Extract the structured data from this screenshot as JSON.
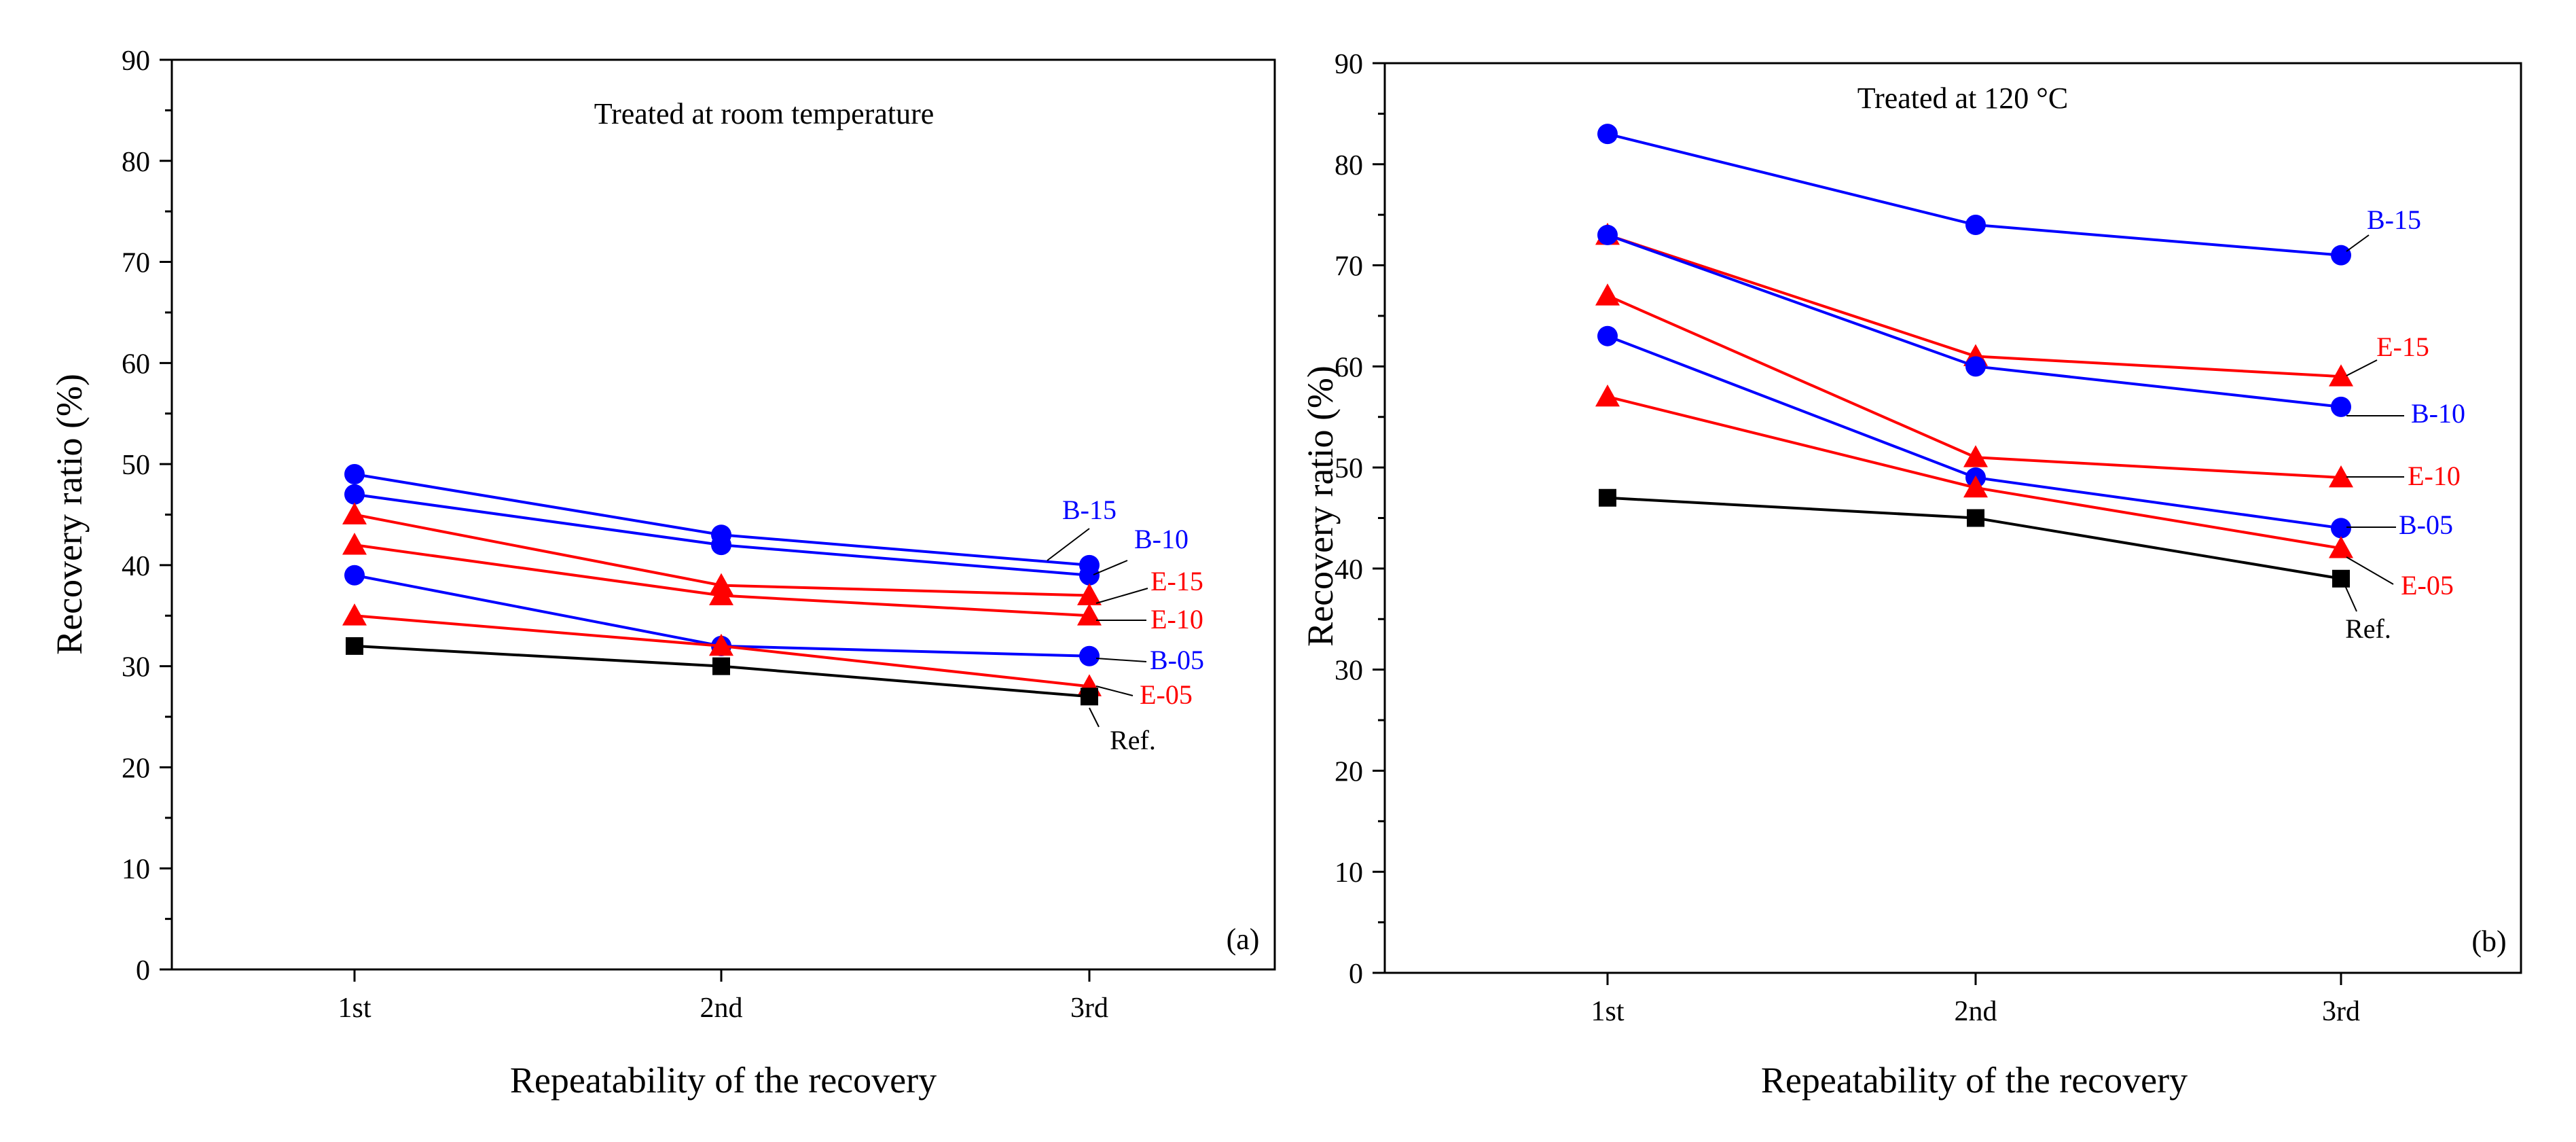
{
  "chart_data": [
    {
      "type": "line",
      "title": "Treated at room temperature",
      "panel_label": "(a)",
      "xlabel": "Repeatability of the recovery",
      "ylabel": "Recovery ratio (%)",
      "categories": [
        "1st",
        "2nd",
        "3rd"
      ],
      "ylim": [
        0,
        90
      ],
      "yticks": [
        0,
        10,
        20,
        30,
        40,
        50,
        60,
        70,
        80,
        90
      ],
      "grid": false,
      "series": [
        {
          "name": "B-15",
          "marker": "circle",
          "color": "#0000ff",
          "values": [
            49,
            43,
            40
          ]
        },
        {
          "name": "B-10",
          "marker": "circle",
          "color": "#0000ff",
          "values": [
            47,
            42,
            39
          ]
        },
        {
          "name": "E-15",
          "marker": "triangle",
          "color": "#ff0000",
          "values": [
            45,
            38,
            37
          ]
        },
        {
          "name": "E-10",
          "marker": "triangle",
          "color": "#ff0000",
          "values": [
            42,
            37,
            35
          ]
        },
        {
          "name": "B-05",
          "marker": "circle",
          "color": "#0000ff",
          "values": [
            39,
            32,
            31
          ]
        },
        {
          "name": "E-05",
          "marker": "triangle",
          "color": "#ff0000",
          "values": [
            35,
            32,
            28
          ]
        },
        {
          "name": "Ref.",
          "marker": "square",
          "color": "#000000",
          "values": [
            32,
            30,
            27
          ]
        }
      ]
    },
    {
      "type": "line",
      "title": "Treated at  120 °C",
      "panel_label": "(b)",
      "xlabel": "Repeatability of the recovery",
      "ylabel": "Recovery ratio (%)",
      "categories": [
        "1st",
        "2nd",
        "3rd"
      ],
      "ylim": [
        0,
        90
      ],
      "yticks": [
        0,
        10,
        20,
        30,
        40,
        50,
        60,
        70,
        80,
        90
      ],
      "grid": false,
      "series": [
        {
          "name": "B-15",
          "marker": "circle",
          "color": "#0000ff",
          "values": [
            83,
            74,
            71
          ]
        },
        {
          "name": "E-15",
          "marker": "triangle",
          "color": "#ff0000",
          "values": [
            73,
            61,
            59
          ]
        },
        {
          "name": "B-10",
          "marker": "circle",
          "color": "#0000ff",
          "values": [
            73,
            60,
            56
          ]
        },
        {
          "name": "E-10",
          "marker": "triangle",
          "color": "#ff0000",
          "values": [
            67,
            51,
            49
          ]
        },
        {
          "name": "B-05",
          "marker": "circle",
          "color": "#0000ff",
          "values": [
            63,
            49,
            44
          ]
        },
        {
          "name": "E-05",
          "marker": "triangle",
          "color": "#ff0000",
          "values": [
            57,
            48,
            42
          ]
        },
        {
          "name": "Ref.",
          "marker": "square",
          "color": "#000000",
          "values": [
            47,
            45,
            39
          ]
        }
      ]
    }
  ]
}
